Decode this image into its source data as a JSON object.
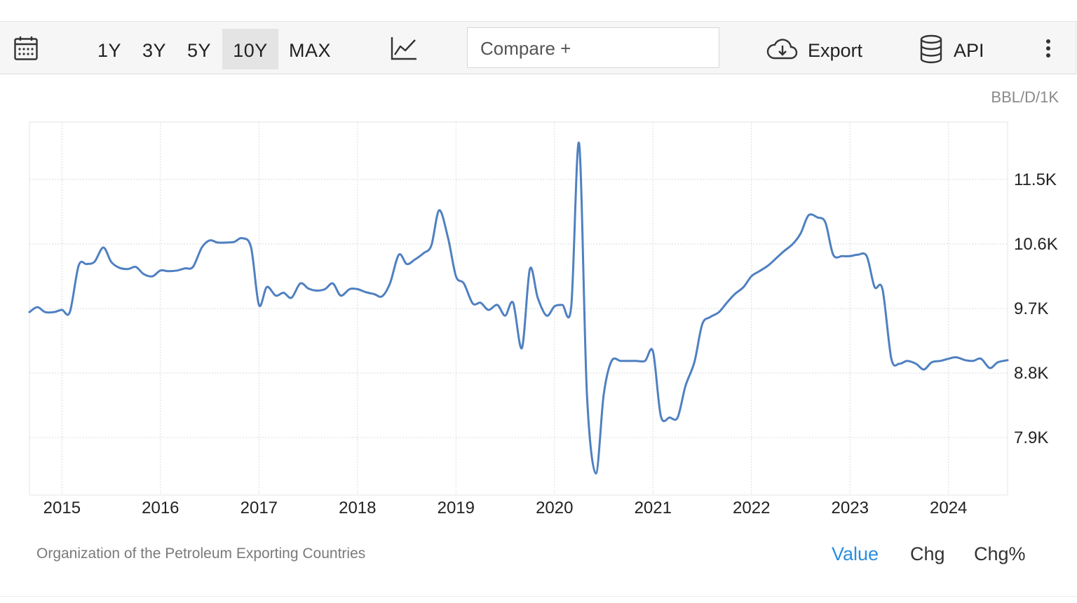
{
  "toolbar": {
    "ranges": [
      {
        "label": "1Y",
        "active": false
      },
      {
        "label": "3Y",
        "active": false
      },
      {
        "label": "5Y",
        "active": false
      },
      {
        "label": "10Y",
        "active": true
      },
      {
        "label": "MAX",
        "active": false
      }
    ],
    "compare_label": "Compare +",
    "export_label": "Export",
    "api_label": "API"
  },
  "unit_label": "BBL/D/1K",
  "source": "Organization of the Petroleum Exporting Countries",
  "tabs": [
    {
      "label": "Value",
      "active": true
    },
    {
      "label": "Chg",
      "active": false
    },
    {
      "label": "Chg%",
      "active": false
    }
  ],
  "colors": {
    "line": "#4f80c1",
    "active_tab": "#2b8ee0",
    "grid": "#dcdcdc"
  },
  "chart_data": {
    "type": "line",
    "title": "",
    "xlabel": "",
    "ylabel": "",
    "unit": "BBL/D/1K",
    "xlim": [
      2014.67,
      2024.6
    ],
    "ylim": [
      7.1,
      12.3
    ],
    "y_ticks": [
      7.9,
      8.8,
      9.7,
      10.6,
      11.5
    ],
    "y_tick_labels": [
      "7.9K",
      "8.8K",
      "9.7K",
      "10.6K",
      "11.5K"
    ],
    "x_ticks": [
      2015,
      2016,
      2017,
      2018,
      2019,
      2020,
      2021,
      2022,
      2023,
      2024
    ],
    "x_tick_labels": [
      "2015",
      "2016",
      "2017",
      "2018",
      "2019",
      "2020",
      "2021",
      "2022",
      "2023",
      "2024"
    ],
    "grid": true,
    "series": [
      {
        "x": [
          2014.67,
          2014.75,
          2014.83,
          2014.92,
          2015.0,
          2015.08,
          2015.17,
          2015.25,
          2015.33,
          2015.42,
          2015.5,
          2015.58,
          2015.67,
          2015.75,
          2015.83,
          2015.92,
          2016.0,
          2016.08,
          2016.17,
          2016.25,
          2016.33,
          2016.42,
          2016.5,
          2016.58,
          2016.67,
          2016.75,
          2016.83,
          2016.92,
          2017.0,
          2017.08,
          2017.17,
          2017.25,
          2017.33,
          2017.42,
          2017.5,
          2017.58,
          2017.67,
          2017.75,
          2017.83,
          2017.92,
          2018.0,
          2018.08,
          2018.17,
          2018.25,
          2018.33,
          2018.42,
          2018.5,
          2018.58,
          2018.67,
          2018.75,
          2018.83,
          2018.92,
          2019.0,
          2019.08,
          2019.17,
          2019.25,
          2019.33,
          2019.42,
          2019.5,
          2019.58,
          2019.67,
          2019.75,
          2019.83,
          2019.92,
          2020.0,
          2020.08,
          2020.17,
          2020.25,
          2020.33,
          2020.42,
          2020.5,
          2020.58,
          2020.67,
          2020.75,
          2020.83,
          2020.92,
          2021.0,
          2021.08,
          2021.17,
          2021.25,
          2021.33,
          2021.42,
          2021.5,
          2021.58,
          2021.67,
          2021.75,
          2021.83,
          2021.92,
          2022.0,
          2022.08,
          2022.17,
          2022.25,
          2022.33,
          2022.42,
          2022.5,
          2022.58,
          2022.67,
          2022.75,
          2022.83,
          2022.92,
          2023.0,
          2023.08,
          2023.17,
          2023.25,
          2023.33,
          2023.42,
          2023.5,
          2023.58,
          2023.67,
          2023.75,
          2023.83,
          2023.92,
          2024.0,
          2024.08,
          2024.17,
          2024.25,
          2024.33,
          2024.42,
          2024.5,
          2024.6
        ],
        "y": [
          9.65,
          9.72,
          9.65,
          9.65,
          9.68,
          9.65,
          10.3,
          10.32,
          10.35,
          10.55,
          10.35,
          10.27,
          10.25,
          10.28,
          10.18,
          10.15,
          10.23,
          10.22,
          10.23,
          10.26,
          10.28,
          10.55,
          10.65,
          10.62,
          10.62,
          10.63,
          10.68,
          10.55,
          9.75,
          10.0,
          9.88,
          9.92,
          9.85,
          10.05,
          9.98,
          9.95,
          9.97,
          10.05,
          9.88,
          9.97,
          9.97,
          9.93,
          9.9,
          9.87,
          10.05,
          10.45,
          10.32,
          10.38,
          10.47,
          10.58,
          11.07,
          10.68,
          10.15,
          10.05,
          9.77,
          9.78,
          9.68,
          9.75,
          9.6,
          9.78,
          9.15,
          10.25,
          9.85,
          9.6,
          9.73,
          9.75,
          9.73,
          12.0,
          8.5,
          7.4,
          8.5,
          8.97,
          8.97,
          8.97,
          8.97,
          8.97,
          9.1,
          8.2,
          8.18,
          8.18,
          8.62,
          8.95,
          9.48,
          9.58,
          9.65,
          9.78,
          9.9,
          10.0,
          10.15,
          10.22,
          10.3,
          10.4,
          10.5,
          10.6,
          10.75,
          11.0,
          10.97,
          10.9,
          10.45,
          10.43,
          10.43,
          10.45,
          10.43,
          10.0,
          9.97,
          9.0,
          8.93,
          8.97,
          8.93,
          8.85,
          8.95,
          8.97,
          9.0,
          9.02,
          8.98,
          8.97,
          9.0,
          8.87,
          8.95,
          8.98
        ]
      }
    ]
  }
}
